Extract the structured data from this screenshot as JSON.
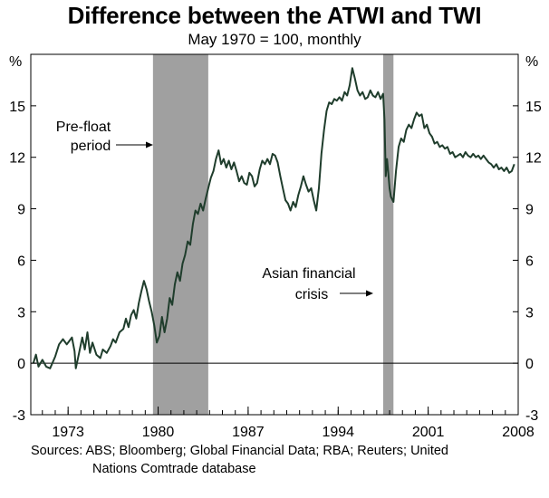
{
  "chart_data": {
    "type": "line",
    "title": "Difference between the ATWI and TWI",
    "subtitle": "May 1970 = 100, monthly",
    "ylabel_left": "%",
    "ylabel_right": "%",
    "ylim": [
      -3,
      18
    ],
    "yticks": [
      -3,
      0,
      3,
      6,
      9,
      12,
      15
    ],
    "xlim": [
      1970.1,
      2008
    ],
    "xticks": [
      1973,
      1980,
      1987,
      1994,
      2001,
      2008
    ],
    "grid": false,
    "shaded_regions": [
      {
        "x_start": 1979.6,
        "x_end": 1983.9
      },
      {
        "x_start": 1997.5,
        "x_end": 1998.3
      }
    ],
    "annotations": [
      {
        "lines": [
          "Pre-float",
          "period"
        ]
      },
      {
        "lines": [
          "Asian financial",
          "crisis"
        ]
      }
    ],
    "series": [
      {
        "color": "#1f3d2c",
        "points": [
          [
            1970.3,
            0.0
          ],
          [
            1970.5,
            0.5
          ],
          [
            1970.7,
            -0.2
          ],
          [
            1971.0,
            0.2
          ],
          [
            1971.3,
            -0.2
          ],
          [
            1971.6,
            -0.3
          ],
          [
            1972.0,
            0.4
          ],
          [
            1972.3,
            1.1
          ],
          [
            1972.6,
            1.4
          ],
          [
            1972.9,
            1.1
          ],
          [
            1973.1,
            1.3
          ],
          [
            1973.3,
            1.5
          ],
          [
            1973.5,
            0.7
          ],
          [
            1973.6,
            -0.3
          ],
          [
            1973.8,
            0.4
          ],
          [
            1974.1,
            1.5
          ],
          [
            1974.3,
            0.8
          ],
          [
            1974.5,
            1.8
          ],
          [
            1974.7,
            0.6
          ],
          [
            1974.9,
            1.2
          ],
          [
            1975.2,
            0.5
          ],
          [
            1975.5,
            0.3
          ],
          [
            1975.7,
            0.8
          ],
          [
            1976.0,
            0.6
          ],
          [
            1976.3,
            1.0
          ],
          [
            1976.5,
            1.4
          ],
          [
            1976.7,
            1.2
          ],
          [
            1977.0,
            1.8
          ],
          [
            1977.3,
            2.0
          ],
          [
            1977.5,
            2.6
          ],
          [
            1977.7,
            2.1
          ],
          [
            1977.9,
            2.8
          ],
          [
            1978.1,
            3.1
          ],
          [
            1978.3,
            2.6
          ],
          [
            1978.5,
            3.5
          ],
          [
            1978.7,
            4.2
          ],
          [
            1978.9,
            4.8
          ],
          [
            1979.1,
            4.3
          ],
          [
            1979.3,
            3.6
          ],
          [
            1979.5,
            3.0
          ],
          [
            1979.7,
            2.2
          ],
          [
            1979.9,
            1.2
          ],
          [
            1980.1,
            1.6
          ],
          [
            1980.3,
            2.7
          ],
          [
            1980.5,
            1.8
          ],
          [
            1980.7,
            2.6
          ],
          [
            1980.9,
            3.8
          ],
          [
            1981.1,
            3.4
          ],
          [
            1981.3,
            4.6
          ],
          [
            1981.5,
            5.3
          ],
          [
            1981.7,
            4.8
          ],
          [
            1981.9,
            5.8
          ],
          [
            1982.1,
            6.3
          ],
          [
            1982.3,
            7.1
          ],
          [
            1982.5,
            6.9
          ],
          [
            1982.7,
            8.1
          ],
          [
            1982.9,
            8.9
          ],
          [
            1983.1,
            8.7
          ],
          [
            1983.3,
            9.3
          ],
          [
            1983.5,
            8.9
          ],
          [
            1983.7,
            9.6
          ],
          [
            1983.9,
            10.2
          ],
          [
            1984.1,
            10.8
          ],
          [
            1984.3,
            11.2
          ],
          [
            1984.5,
            11.9
          ],
          [
            1984.7,
            12.4
          ],
          [
            1984.9,
            11.6
          ],
          [
            1985.1,
            11.9
          ],
          [
            1985.3,
            11.4
          ],
          [
            1985.5,
            11.8
          ],
          [
            1985.7,
            11.3
          ],
          [
            1985.9,
            11.7
          ],
          [
            1986.1,
            11.2
          ],
          [
            1986.3,
            10.6
          ],
          [
            1986.5,
            10.9
          ],
          [
            1986.7,
            10.5
          ],
          [
            1986.9,
            10.4
          ],
          [
            1987.1,
            11.1
          ],
          [
            1987.3,
            10.9
          ],
          [
            1987.5,
            10.3
          ],
          [
            1987.7,
            10.5
          ],
          [
            1987.9,
            11.3
          ],
          [
            1988.1,
            11.8
          ],
          [
            1988.3,
            11.6
          ],
          [
            1988.5,
            11.9
          ],
          [
            1988.7,
            11.6
          ],
          [
            1988.9,
            12.2
          ],
          [
            1989.1,
            12.1
          ],
          [
            1989.3,
            11.7
          ],
          [
            1989.5,
            10.9
          ],
          [
            1989.7,
            10.2
          ],
          [
            1989.9,
            9.5
          ],
          [
            1990.1,
            9.3
          ],
          [
            1990.3,
            8.9
          ],
          [
            1990.5,
            9.4
          ],
          [
            1990.7,
            9.1
          ],
          [
            1990.9,
            9.8
          ],
          [
            1991.1,
            10.3
          ],
          [
            1991.3,
            10.9
          ],
          [
            1991.5,
            10.4
          ],
          [
            1991.7,
            10.0
          ],
          [
            1991.9,
            10.2
          ],
          [
            1992.1,
            9.5
          ],
          [
            1992.3,
            8.9
          ],
          [
            1992.5,
            10.2
          ],
          [
            1992.7,
            12.2
          ],
          [
            1992.9,
            13.6
          ],
          [
            1993.1,
            14.7
          ],
          [
            1993.3,
            15.2
          ],
          [
            1993.5,
            15.1
          ],
          [
            1993.7,
            15.4
          ],
          [
            1993.9,
            15.3
          ],
          [
            1994.1,
            15.5
          ],
          [
            1994.3,
            15.3
          ],
          [
            1994.5,
            15.8
          ],
          [
            1994.7,
            15.6
          ],
          [
            1994.9,
            16.2
          ],
          [
            1995.1,
            17.2
          ],
          [
            1995.3,
            16.6
          ],
          [
            1995.5,
            15.9
          ],
          [
            1995.7,
            15.6
          ],
          [
            1995.9,
            15.8
          ],
          [
            1996.1,
            15.4
          ],
          [
            1996.3,
            15.5
          ],
          [
            1996.5,
            15.9
          ],
          [
            1996.7,
            15.6
          ],
          [
            1996.9,
            15.5
          ],
          [
            1997.1,
            15.8
          ],
          [
            1997.3,
            15.4
          ],
          [
            1997.5,
            15.7
          ],
          [
            1997.6,
            14.2
          ],
          [
            1997.7,
            10.9
          ],
          [
            1997.8,
            11.9
          ],
          [
            1997.9,
            11.1
          ],
          [
            1998.0,
            10.2
          ],
          [
            1998.1,
            9.7
          ],
          [
            1998.3,
            9.4
          ],
          [
            1998.5,
            11.2
          ],
          [
            1998.7,
            12.6
          ],
          [
            1998.9,
            13.1
          ],
          [
            1999.1,
            12.9
          ],
          [
            1999.3,
            13.6
          ],
          [
            1999.5,
            13.9
          ],
          [
            1999.7,
            13.7
          ],
          [
            1999.9,
            14.2
          ],
          [
            2000.1,
            14.6
          ],
          [
            2000.3,
            14.4
          ],
          [
            2000.5,
            14.5
          ],
          [
            2000.7,
            13.7
          ],
          [
            2000.9,
            13.9
          ],
          [
            2001.1,
            13.4
          ],
          [
            2001.3,
            13.2
          ],
          [
            2001.5,
            12.8
          ],
          [
            2001.7,
            12.9
          ],
          [
            2001.9,
            12.6
          ],
          [
            2002.1,
            12.7
          ],
          [
            2002.3,
            12.5
          ],
          [
            2002.5,
            12.6
          ],
          [
            2002.7,
            12.2
          ],
          [
            2002.9,
            12.3
          ],
          [
            2003.1,
            12.0
          ],
          [
            2003.3,
            12.1
          ],
          [
            2003.5,
            12.2
          ],
          [
            2003.7,
            12.0
          ],
          [
            2003.9,
            12.3
          ],
          [
            2004.1,
            12.1
          ],
          [
            2004.3,
            12.0
          ],
          [
            2004.5,
            12.2
          ],
          [
            2004.7,
            12.0
          ],
          [
            2004.9,
            12.1
          ],
          [
            2005.1,
            11.9
          ],
          [
            2005.3,
            12.1
          ],
          [
            2005.5,
            11.9
          ],
          [
            2005.7,
            11.7
          ],
          [
            2005.9,
            11.6
          ],
          [
            2006.1,
            11.4
          ],
          [
            2006.3,
            11.6
          ],
          [
            2006.5,
            11.3
          ],
          [
            2006.7,
            11.4
          ],
          [
            2006.9,
            11.2
          ],
          [
            2007.1,
            11.4
          ],
          [
            2007.3,
            11.1
          ],
          [
            2007.5,
            11.2
          ],
          [
            2007.7,
            11.6
          ]
        ]
      }
    ]
  },
  "sources": {
    "line1": "Sources: ABS; Bloomberg; Global Financial Data; RBA; Reuters; United",
    "line2": "Nations Comtrade database"
  }
}
